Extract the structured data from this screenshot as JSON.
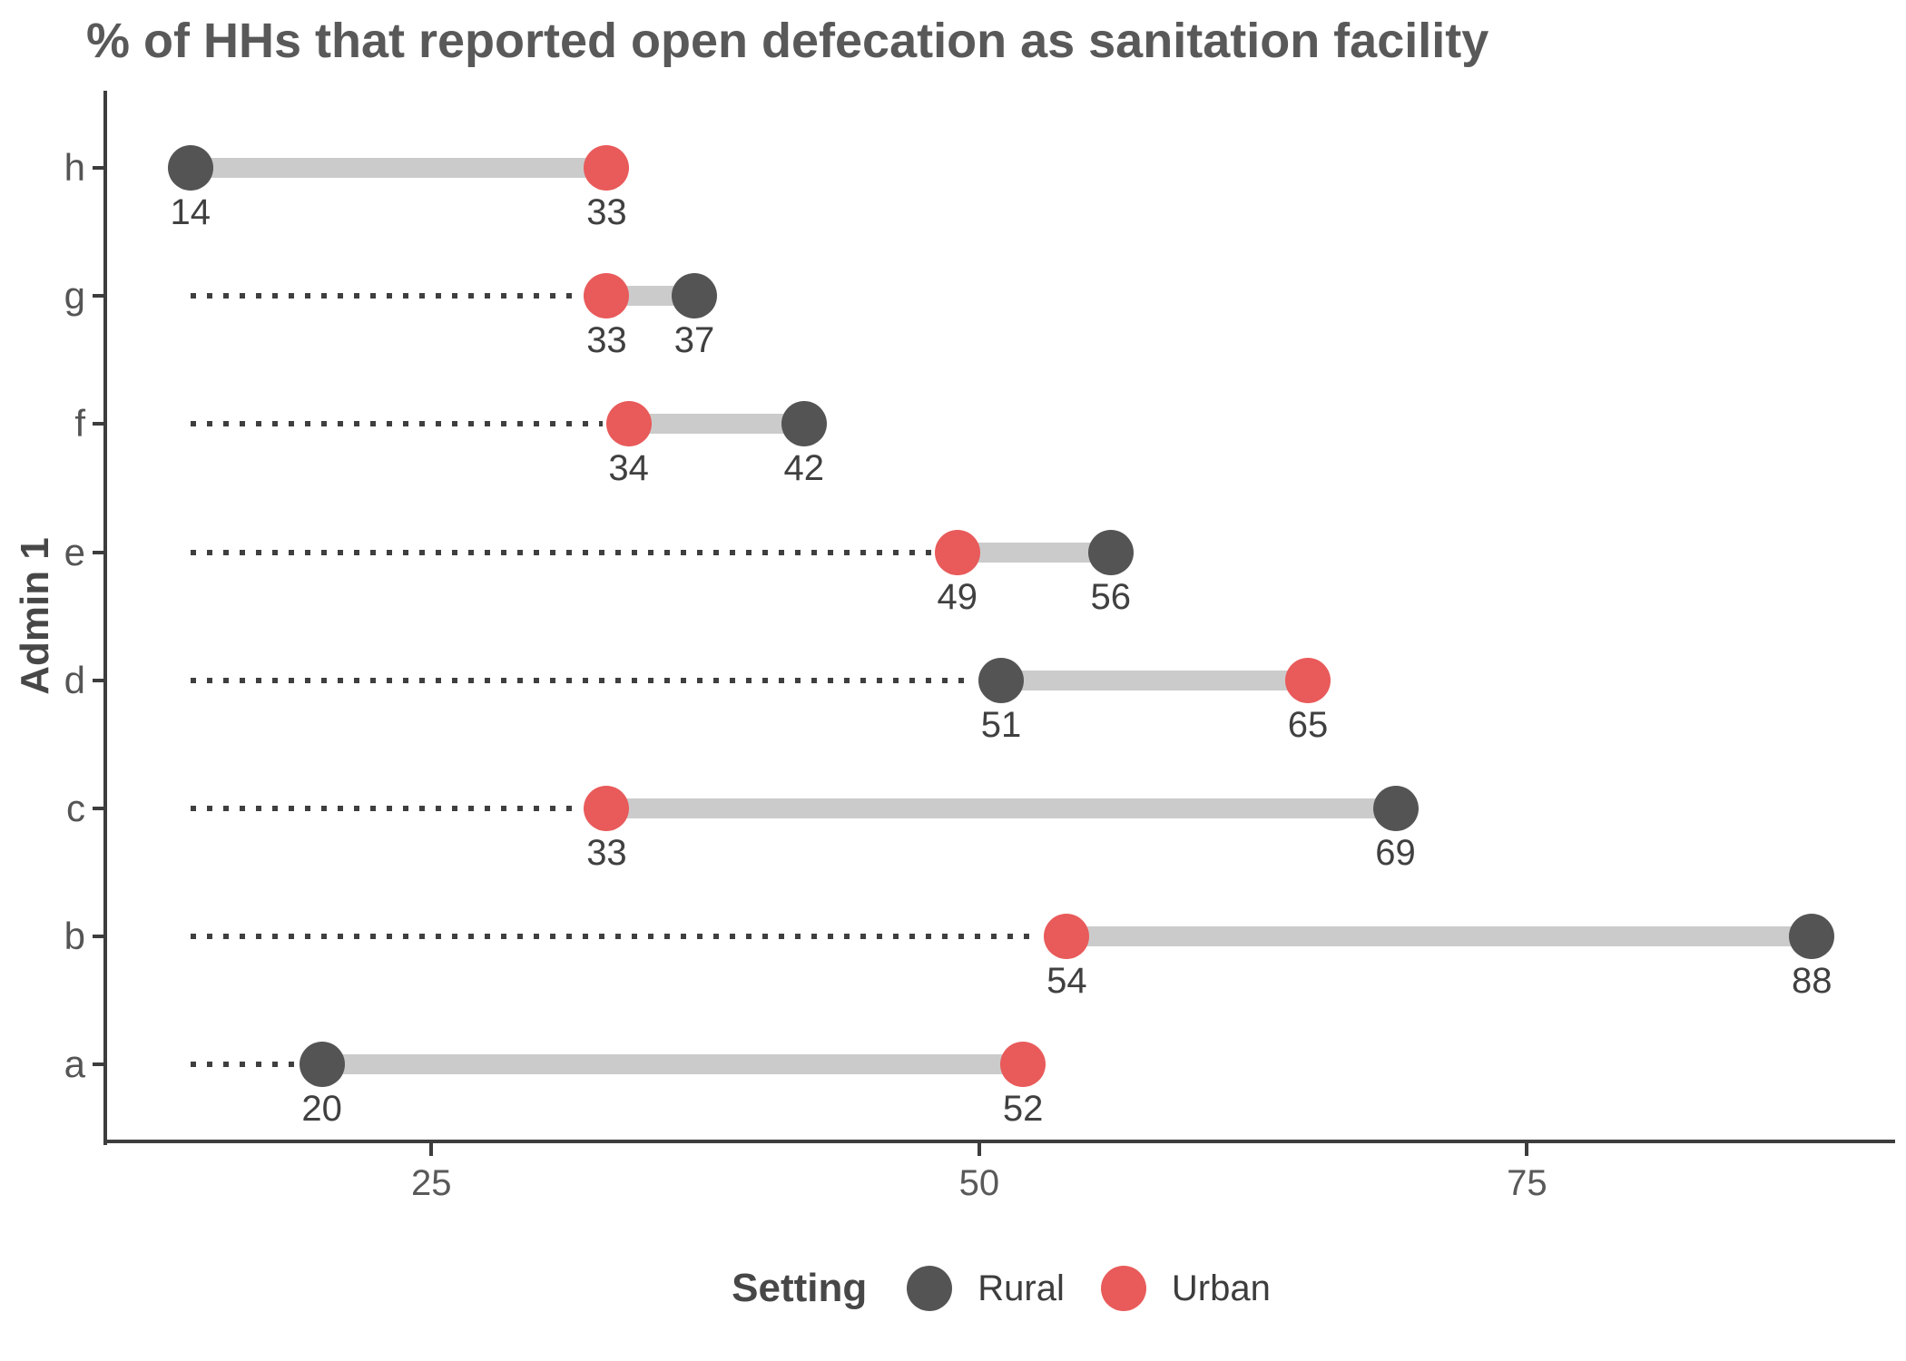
{
  "chart_data": {
    "type": "dumbbell",
    "title": "% of HHs that reported open defecation as sanitation facility",
    "ylabel": "Admin 1",
    "xlabel": "",
    "categories": [
      "h",
      "g",
      "f",
      "e",
      "d",
      "c",
      "b",
      "a"
    ],
    "series": [
      {
        "name": "Rural",
        "color": "#545454",
        "values": [
          14,
          37,
          42,
          56,
          51,
          69,
          88,
          20
        ]
      },
      {
        "name": "Urban",
        "color": "#E95A5A",
        "values": [
          33,
          33,
          34,
          49,
          65,
          33,
          54,
          52
        ]
      }
    ],
    "x_ticks": [
      25,
      50,
      75
    ],
    "x_range": [
      10.2,
      91.8
    ],
    "leader_start_value": 14,
    "legend_title": "Setting",
    "legend_position": "bottom",
    "grid": false,
    "value_labels": true,
    "colors": {
      "connector": "#cbcbcb",
      "leader": "#3f3f3f",
      "axis": "#3d3d3d",
      "value_label": "#404040",
      "tick_label": "#595959",
      "title": "#595959"
    }
  }
}
